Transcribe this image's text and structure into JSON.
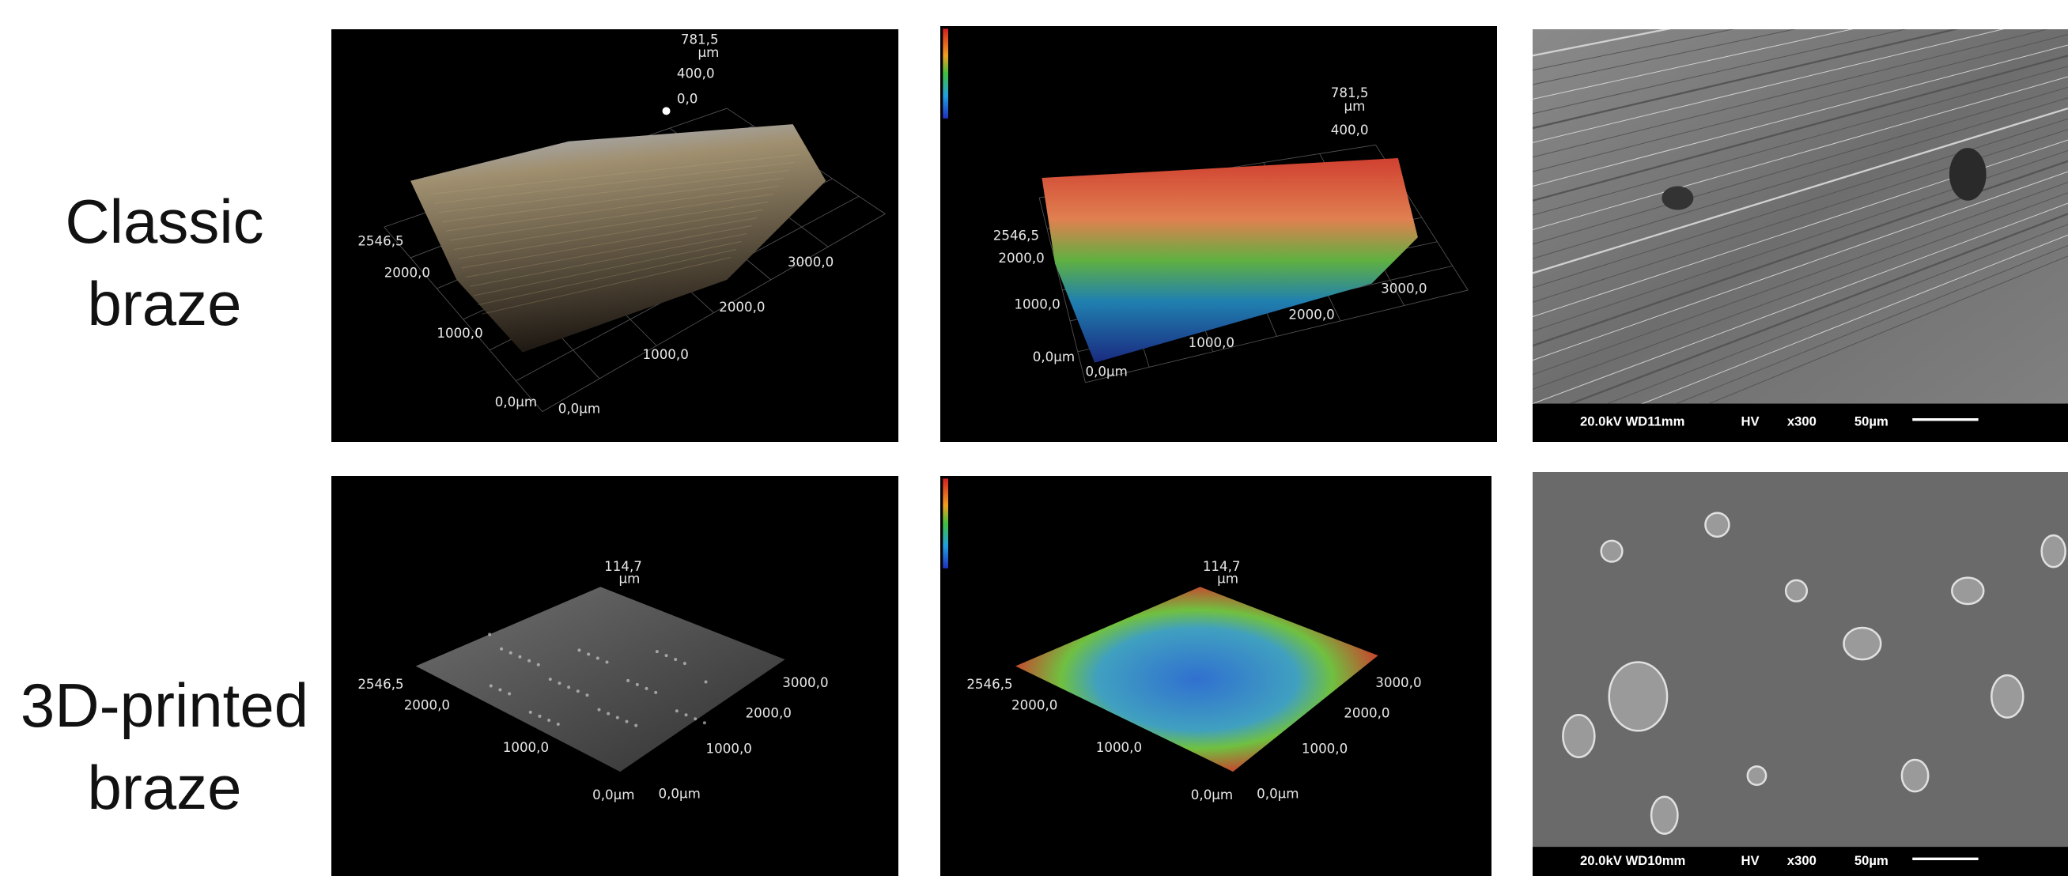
{
  "rows": [
    {
      "label": [
        "Classic",
        "braze"
      ],
      "surface_plot": {
        "z_max": "781,5",
        "z_unit": "µm",
        "z_ticks": [
          "400,0",
          "0,0"
        ],
        "y_ticks": [
          "2546,5",
          "2000,0",
          "1000,0",
          "0,0µm"
        ],
        "x_ticks": [
          "0,0µm",
          "1000,0",
          "2000,0",
          "3000,0"
        ]
      },
      "height_map": {
        "z_max": "781,5",
        "z_unit": "µm",
        "z_ticks": [
          "400,0"
        ],
        "y_ticks": [
          "2546,5",
          "2000,0",
          "1000,0",
          "0,0µm"
        ],
        "x_ticks": [
          "0,0µm",
          "1000,0",
          "2000,0",
          "3000,0"
        ]
      },
      "sem": {
        "voltage_wd": "20.0kV WD11mm",
        "mode": "HV",
        "magnification": "x300",
        "scale": "50µm"
      }
    },
    {
      "label": [
        "3D-printed",
        "braze"
      ],
      "surface_plot": {
        "z_max": "114,7",
        "z_unit": "µm",
        "y_ticks": [
          "2546,5",
          "2000,0",
          "1000,0",
          "0,0µm"
        ],
        "x_ticks": [
          "0,0µm",
          "1000,0",
          "2000,0",
          "3000,0"
        ]
      },
      "height_map": {
        "z_max": "114,7",
        "z_unit": "µm",
        "y_ticks": [
          "2546,5",
          "2000,0",
          "1000,0",
          "0,0µm"
        ],
        "x_ticks": [
          "0,0µm",
          "1000,0",
          "2000,0",
          "3000,0"
        ]
      },
      "sem": {
        "voltage_wd": "20.0kV WD10mm",
        "mode": "HV",
        "magnification": "x300",
        "scale": "50µm"
      }
    }
  ]
}
